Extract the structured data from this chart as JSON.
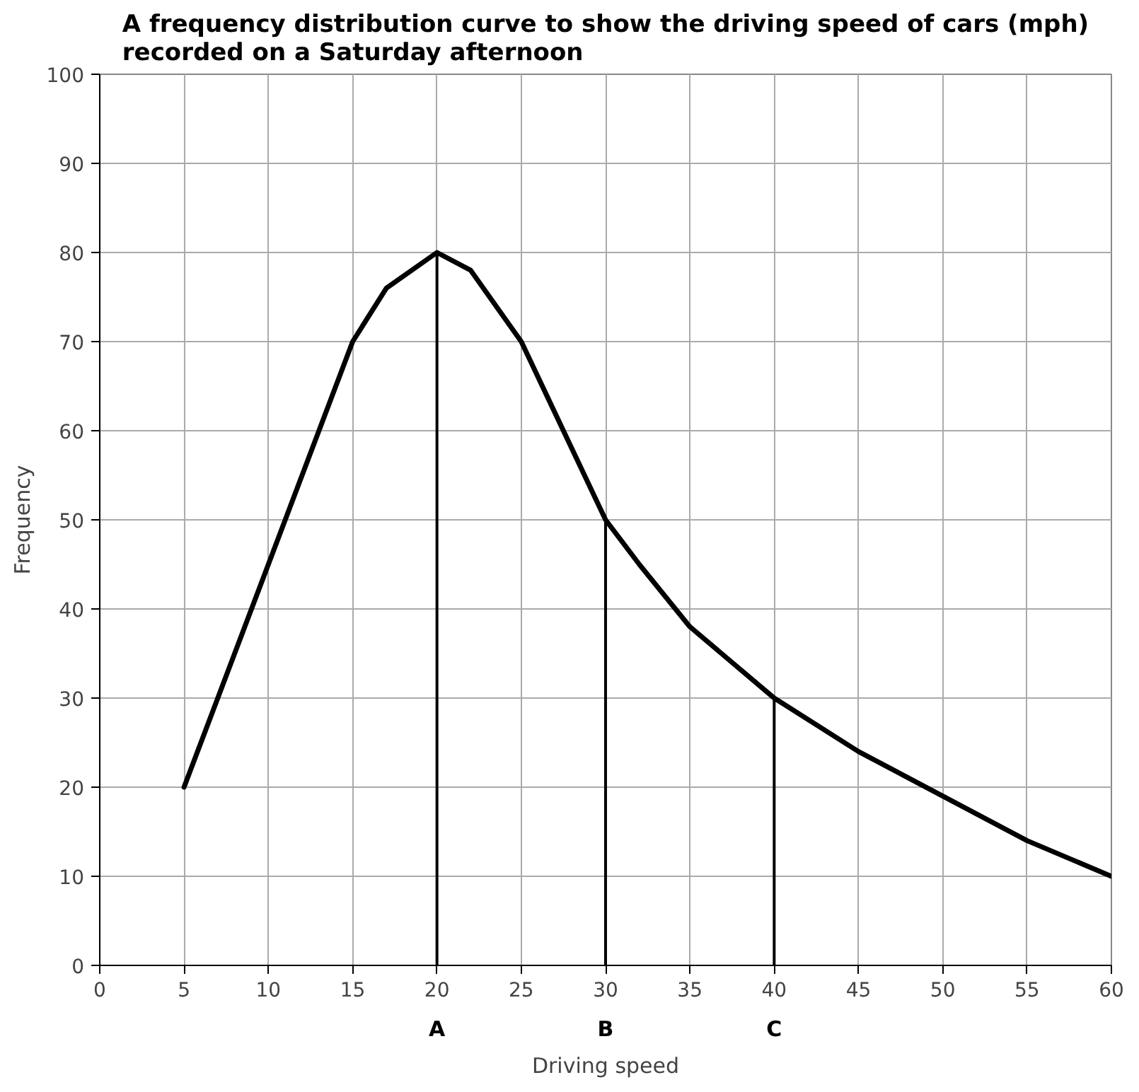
{
  "chart_data": {
    "type": "line",
    "title": "A frequency distribution curve to show the driving speed of cars (mph)\nrecorded on a Saturday afternoon",
    "xlabel": "Driving speed",
    "ylabel": "Frequency",
    "x": [
      5,
      10,
      15,
      17,
      20,
      22,
      25,
      28,
      30,
      32,
      35,
      40,
      45,
      50,
      55,
      60
    ],
    "series": [
      {
        "color": "#000000",
        "values": [
          20,
          45,
          70,
          76,
          80,
          78,
          70,
          58,
          50,
          45,
          38,
          30,
          24,
          19,
          14,
          10
        ]
      }
    ],
    "xlim": [
      0,
      60
    ],
    "ylim": [
      0,
      100
    ],
    "xticks": [
      0,
      5,
      10,
      15,
      20,
      25,
      30,
      35,
      40,
      45,
      50,
      55,
      60
    ],
    "yticks": [
      0,
      10,
      20,
      30,
      40,
      50,
      60,
      70,
      80,
      90,
      100
    ],
    "ref_lines": [
      {
        "axis": "x",
        "value": 20,
        "label": "A",
        "color": "#000000"
      },
      {
        "axis": "x",
        "value": 30,
        "label": "B",
        "color": "#000000"
      },
      {
        "axis": "x",
        "value": 40,
        "label": "C",
        "color": "#000000"
      }
    ],
    "grid": true,
    "marker": "none",
    "line_style": "solid"
  }
}
